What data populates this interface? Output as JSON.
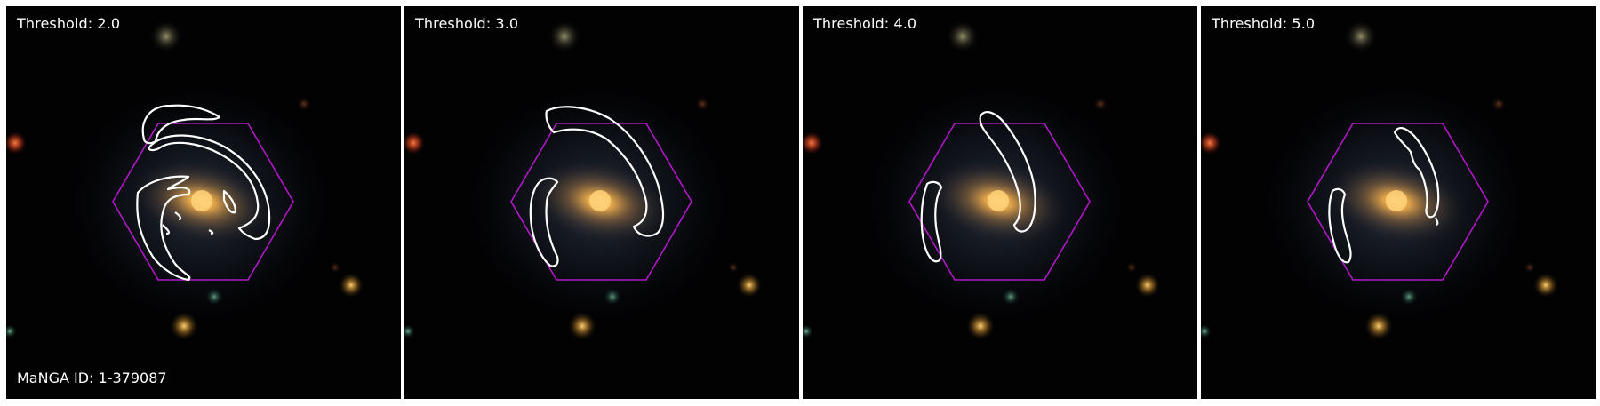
{
  "panels": [
    {
      "title": "Threshold: 2.0",
      "id_label": "MaNGA ID: 1-379087"
    },
    {
      "title": "Threshold: 3.0",
      "id_label": ""
    },
    {
      "title": "Threshold: 4.0",
      "id_label": ""
    },
    {
      "title": "Threshold: 5.0",
      "id_label": ""
    }
  ],
  "colors": {
    "sky": "#020203",
    "galaxy_core": "#f0b44a",
    "disk": "#8a6a3a",
    "halo": "#3a4d6a",
    "contour": "#ffffff",
    "hexagon": "#b018c8",
    "star_red": "#e0502a",
    "star_orange": "#d99a30",
    "star_green": "#4a8a6a"
  }
}
